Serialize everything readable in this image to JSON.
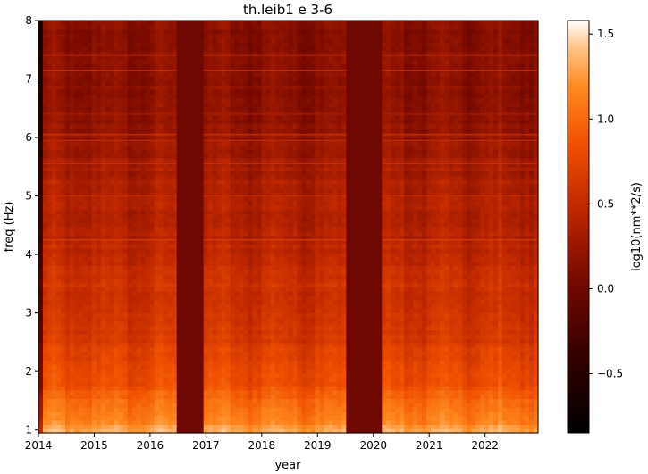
{
  "chart_data": {
    "type": "heatmap",
    "title": "th.leib1 e 3-6",
    "xlabel": "year",
    "ylabel": "freq (Hz)",
    "colorbar_label": "log10(nm**2/s)",
    "colormap": "gist_heat",
    "xlim": [
      2014.0,
      2022.95
    ],
    "ylim": [
      0.95,
      8.0
    ],
    "clim": [
      -0.85,
      1.58
    ],
    "x_ticks": [
      2014,
      2015,
      2016,
      2017,
      2018,
      2019,
      2020,
      2021,
      2022
    ],
    "y_ticks": [
      1,
      2,
      3,
      4,
      5,
      6,
      7,
      8
    ],
    "colorbar_ticks": [
      -0.5,
      0.0,
      0.5,
      1.0,
      1.5
    ],
    "colorbar_tick_labels": [
      "−0.5",
      "0.0",
      "0.5",
      "1.0",
      "1.5"
    ],
    "data_gaps": [
      {
        "start": 2016.47,
        "end": 2016.93,
        "value": 0.0
      },
      {
        "start": 2019.53,
        "end": 2020.13,
        "value": 0.0
      }
    ],
    "frequency_profile": {
      "freq": [
        0.95,
        1.1,
        1.3,
        1.6,
        2.0,
        2.5,
        3.0,
        3.5,
        4.0,
        4.5,
        5.0,
        5.5,
        6.0,
        6.5,
        7.0,
        7.5,
        8.0
      ],
      "value": [
        1.35,
        1.22,
        1.05,
        0.92,
        0.78,
        0.66,
        0.58,
        0.55,
        0.47,
        0.42,
        0.38,
        0.32,
        0.24,
        0.16,
        0.18,
        0.15,
        0.11
      ]
    },
    "narrow_lines": [
      {
        "freq": 7.15,
        "value": 0.55
      },
      {
        "freq": 6.05,
        "value": 0.55
      },
      {
        "freq": 5.95,
        "value": 0.45
      },
      {
        "freq": 7.4,
        "value": 0.4
      },
      {
        "freq": 4.25,
        "value": 0.55
      },
      {
        "freq": 5.55,
        "value": 0.45
      },
      {
        "freq": 5.0,
        "value": 0.42
      },
      {
        "freq": 6.4,
        "value": 0.3
      }
    ]
  }
}
